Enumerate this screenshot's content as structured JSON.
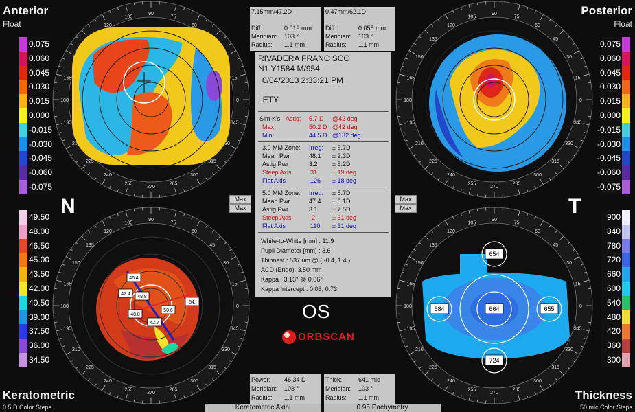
{
  "corners": {
    "top_left_title": "Anterior",
    "top_left_sub": "Float",
    "top_right_title": "Posterior",
    "top_right_sub": "Float",
    "bottom_left_title": "Keratometric",
    "bottom_left_sub": "0.5 D Color Steps",
    "bottom_right_title": "Thickness",
    "bottom_right_sub": "50 mic Color Steps"
  },
  "side_letters": {
    "left": "N",
    "right": "T"
  },
  "scales": {
    "anterior_float": [
      "0.075",
      "0.060",
      "0.045",
      "0.030",
      "0.015",
      "0.000",
      "-0.015",
      "-0.030",
      "-0.045",
      "-0.060",
      "-0.075"
    ],
    "posterior_float": [
      "0.075",
      "0.060",
      "0.045",
      "0.030",
      "0.015",
      "0.000",
      "-0.015",
      "-0.030",
      "-0.045",
      "-0.060",
      "-0.075"
    ],
    "keratometric": [
      "49.50",
      "48.00",
      "46.50",
      "45.00",
      "43.50",
      "42.00",
      "40.50",
      "39.00",
      "37.50",
      "36.00",
      "34.50"
    ],
    "thickness": [
      "900",
      "840",
      "780",
      "720",
      "660",
      "600",
      "540",
      "480",
      "420",
      "360",
      "300"
    ],
    "float_colors": [
      "#c23dd6",
      "#d2165c",
      "#e02a10",
      "#f06a10",
      "#f7b416",
      "#f2f21e",
      "#45d0e0",
      "#1f8fe6",
      "#2247c8",
      "#5a2aa0",
      "#a65fd4"
    ],
    "kerat_colors": [
      "#f0cfe6",
      "#e8a0c6",
      "#e04a2a",
      "#ee7a1a",
      "#f0b410",
      "#f4e42a",
      "#1fd6e2",
      "#2296e0",
      "#2a3ae0",
      "#8a4ad8",
      "#c890e0"
    ],
    "thick_colors": [
      "#f2f0ff",
      "#c8c4f0",
      "#7a7ae6",
      "#3a64e8",
      "#1ea8ee",
      "#28c8ee",
      "#2abd6a",
      "#f0e030",
      "#e87a2a",
      "#b84040",
      "#e0a0b0"
    ]
  },
  "top_left_box": {
    "header": "7.15mm/47.2D",
    "diff_label": "Diff:",
    "diff": "0.019 mm",
    "meridian_label": "Meridian:",
    "meridian": "103 °",
    "radius_label": "Radius:",
    "radius": "1.1 mm"
  },
  "top_right_box": {
    "header": "0.47mm/62.1D",
    "diff_label": "Diff:",
    "diff": "0.055 mm",
    "meridian_label": "Meridian:",
    "meridian": "103 °",
    "radius_label": "Radius:",
    "radius": "1.1 mm"
  },
  "bottom_left_box": {
    "power_label": "Power:",
    "power": "46.34 D",
    "meridian_label": "Meridian:",
    "meridian": "103 °",
    "radius_label": "Radius:",
    "radius": "1.1 mm"
  },
  "bottom_right_box": {
    "thick_label": "Thick:",
    "thick": "641 mic",
    "meridian_label": "Meridian:",
    "meridian": "103 °",
    "radius_label": "Radius:",
    "radius": "1.1 mm"
  },
  "patient": {
    "name": "RIVADERA  FRANC SCO",
    "id": "N1 Y1584 M/954",
    "datetime": "0/04/2013 2:33:21 PM",
    "operator": "LETY"
  },
  "sim_k": {
    "label": "Sim K's:",
    "astig_label": "Astig:",
    "astig": "5.7 D",
    "astig_axis": "@42 deg",
    "max_label": "Max:",
    "max": "50.2 D",
    "max_axis": "@42 deg",
    "min_label": "Min:",
    "min": "44.5 D",
    "min_axis": "@132 deg"
  },
  "zone3": {
    "title": "3.0 MM Zone:",
    "irreg_label": "Irreg:",
    "irreg": "± 5.7D",
    "mean_label": "Mean Pwr",
    "mean": "48.1",
    "mean_sd": "± 2.3D",
    "astig_label": "Astig Pwr",
    "astig": "3.2",
    "astig_sd": "± 5.2D",
    "steep_label": "Steep Axis",
    "steep": "31",
    "steep_sd": "± 19 deg",
    "flat_label": "Flat Axis",
    "flat": "126",
    "flat_sd": "± 18 deg"
  },
  "zone5": {
    "title": "5.0 MM Zone:",
    "irreg_label": "Irreg:",
    "irreg": "± 5.7D",
    "mean_label": "Mean Pwr",
    "mean": "47.4",
    "mean_sd": "± 6.1D",
    "astig_label": "Astig Pwr",
    "astig": "3.1",
    "astig_sd": "± 7.5D",
    "steep_label": "Steep Axis",
    "steep": "2",
    "steep_sd": "± 31 deg",
    "flat_label": "Flat Axis",
    "flat": "110",
    "flat_sd": "± 31 deg"
  },
  "misc": {
    "wtw": "White-to-White [mm] : 11.9",
    "pupil": "Pupil Diameter [mm] : 3.6",
    "thinnest": "Thinnest : 537 um @ ( -0.4, 1.4 )",
    "acd": "ACD (Endo): 3.50 mm",
    "kappa": "Kappa : 3.13° @ 0.06°",
    "kappa_intercept": "Kappa Intercept : 0.03, 0.73"
  },
  "max_buttons": {
    "label": "Max"
  },
  "eye": "OS",
  "logo_text": "ORBSCAN",
  "bottom_tabs": {
    "left": "Keratometric Axial",
    "right": "0.95 Pachymetry"
  },
  "thickness_labels": {
    "top": "654",
    "left": "684",
    "center": "664",
    "right": "655",
    "bottom": "724"
  },
  "kerat_labels": [
    "46.4",
    "47.4",
    "48.8",
    "50.6",
    "54.",
    "48.8",
    "42.7"
  ],
  "ring_degrees": [
    "0",
    "15",
    "30",
    "45",
    "60",
    "75",
    "90",
    "105",
    "120",
    "135",
    "150",
    "165",
    "180",
    "195",
    "210",
    "225",
    "240",
    "255",
    "270",
    "285",
    "300",
    "315",
    "330",
    "345"
  ]
}
